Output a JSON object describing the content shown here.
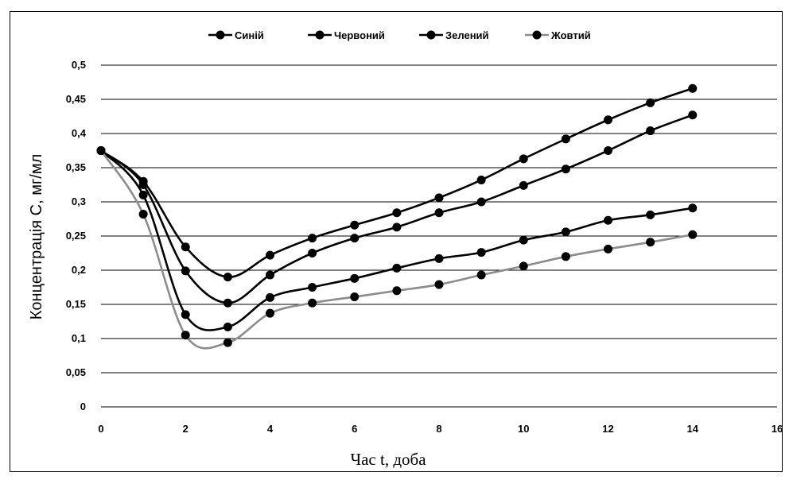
{
  "chart_data": {
    "type": "line",
    "title": "",
    "xlabel": "Час t, доба",
    "ylabel": "Концентрація С, мг/мл",
    "xlim": [
      0,
      16
    ],
    "ylim": [
      0,
      0.5
    ],
    "xticks": [
      0,
      2,
      4,
      6,
      8,
      10,
      12,
      14,
      16
    ],
    "yticks": [
      0,
      0.05,
      0.1,
      0.15,
      0.2,
      0.25,
      0.3,
      0.35,
      0.4,
      0.45,
      0.5
    ],
    "xtick_labels": [
      "0",
      "2",
      "4",
      "6",
      "8",
      "10",
      "12",
      "14",
      "16"
    ],
    "ytick_labels": [
      "0",
      "0,05",
      "0,1",
      "0,15",
      "0,2",
      "0,25",
      "0,3",
      "0,35",
      "0,4",
      "0,45",
      "0,5"
    ],
    "grid": "horizontal",
    "legend_position": "top",
    "x": [
      0,
      1,
      2,
      3,
      4,
      5,
      6,
      7,
      8,
      9,
      10,
      11,
      12,
      13,
      14
    ],
    "series": [
      {
        "name": "Синій",
        "color": "#000000",
        "values": [
          0.375,
          0.33,
          0.234,
          0.19,
          0.222,
          0.247,
          0.266,
          0.284,
          0.306,
          0.332,
          0.363,
          0.392,
          0.42,
          0.445,
          0.466
        ]
      },
      {
        "name": "Червоний",
        "color": "#000000",
        "values": [
          0.375,
          0.325,
          0.199,
          0.152,
          0.193,
          0.225,
          0.247,
          0.263,
          0.284,
          0.3,
          0.324,
          0.348,
          0.375,
          0.404,
          0.427
        ]
      },
      {
        "name": "Зелений",
        "color": "#000000",
        "values": [
          0.375,
          0.31,
          0.135,
          0.117,
          0.16,
          0.175,
          0.188,
          0.203,
          0.217,
          0.226,
          0.244,
          0.256,
          0.273,
          0.281,
          0.291
        ]
      },
      {
        "name": "Жовтий",
        "color": "#8c8c8c",
        "values": [
          0.375,
          0.282,
          0.105,
          0.094,
          0.137,
          0.152,
          0.161,
          0.17,
          0.179,
          0.193,
          0.206,
          0.22,
          0.231,
          0.241,
          0.252
        ]
      }
    ]
  }
}
